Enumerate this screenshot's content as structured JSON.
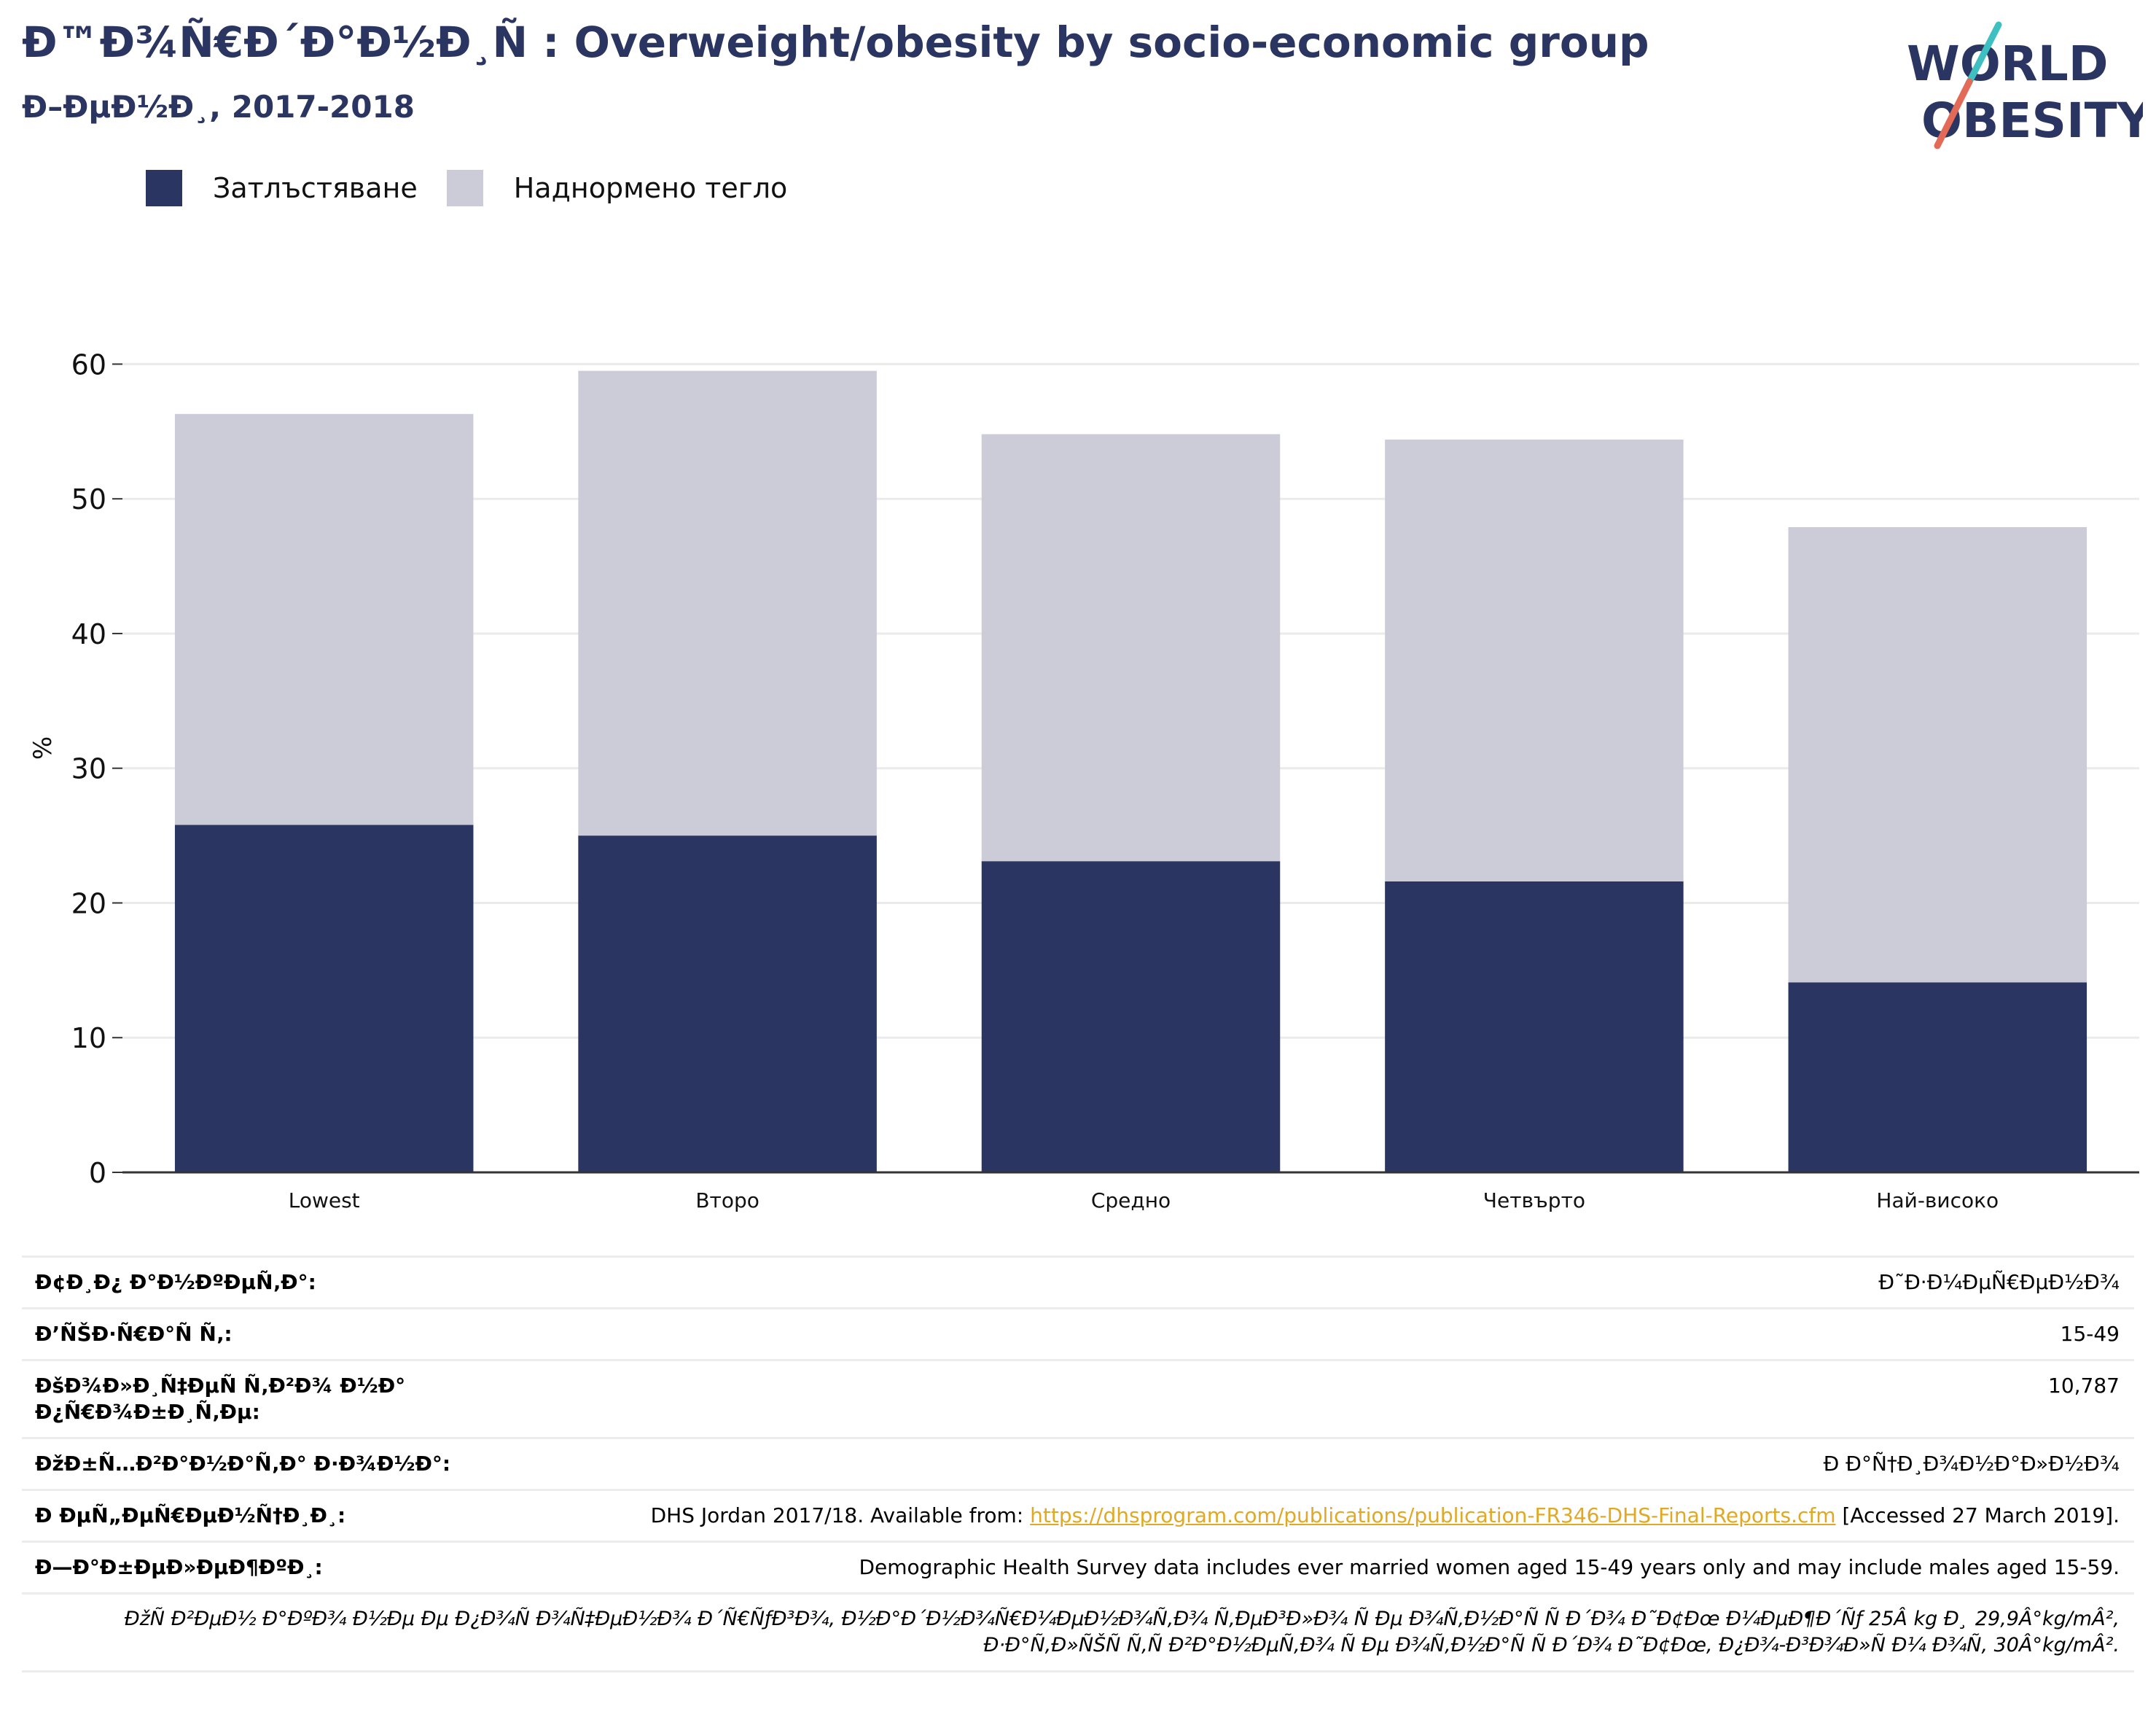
{
  "header": {
    "title": "Ð™Ð¾Ñ€Ð´Ð°Ð½Ð¸Ñ : Overweight/obesity by socio-economic group",
    "subtitle": "Ð–ÐµÐ½Ð¸, 2017-2018",
    "logo_text": "WORLD OBESITY"
  },
  "colors": {
    "obesity": "#2b3561",
    "overweight": "#cbccd8",
    "title": "#2b3561",
    "link": "#e1a823",
    "logo_teal": "#3ebfc1",
    "logo_red": "#e26a57"
  },
  "chart_data": {
    "type": "bar",
    "stacked": true,
    "categories": [
      "Lowest",
      "Второ",
      "Средно",
      "Четвърто",
      "Най-високо"
    ],
    "series": [
      {
        "name": "Затлъстяване",
        "values": [
          25.8,
          25.0,
          23.1,
          21.6,
          14.1
        ]
      },
      {
        "name": "Наднормено тегло",
        "values": [
          30.5,
          34.5,
          31.7,
          32.8,
          33.8
        ]
      }
    ],
    "totals": [
      56.3,
      59.5,
      54.8,
      54.4,
      47.9
    ],
    "ylabel": "%",
    "ylim": [
      0,
      63
    ],
    "yticks": [
      0,
      10,
      20,
      30,
      40,
      50,
      60
    ],
    "grid": true,
    "legend_position": "top-left"
  },
  "info": {
    "rows": [
      {
        "key": "Ð¢Ð¸Ð¿ Ð°Ð½ÐºÐµÑ‚Ð°:",
        "value": "Ð˜Ð·Ð¼ÐµÑ€ÐµÐ½Ð¾"
      },
      {
        "key": "Ð’ÑŠÐ·Ñ€Ð°Ñ Ñ‚:",
        "value": "15-49"
      },
      {
        "key": "ÐšÐ¾Ð»Ð¸Ñ‡ÐµÑ Ñ‚Ð²Ð¾ Ð½Ð° Ð¿Ñ€Ð¾Ð±Ð¸Ñ‚Ðµ:",
        "value": "10,787"
      },
      {
        "key": "ÐžÐ±Ñ…Ð²Ð°Ð½Ð°Ñ‚Ð° Ð·Ð¾Ð½Ð°:",
        "value": "Ð Ð°Ñ†Ð¸Ð¾Ð½Ð°Ð»Ð½Ð¾"
      }
    ],
    "references": {
      "key": "Ð ÐµÑ„ÐµÑ€ÐµÐ½Ñ†Ð¸Ð¸:",
      "prefix": "DHS Jordan 2017/18. Available from: ",
      "link": "https://dhsprogram.com/publications/publication-FR346-DHS-Final-Reports.cfm",
      "suffix": " [Accessed 27 March 2019]."
    },
    "notes": {
      "key": "Ð—Ð°Ð±ÐµÐ»ÐµÐ¶ÐºÐ¸:",
      "value": "Demographic Health Survey data includes ever married women aged 15-49 years only and may include males aged 15-59."
    },
    "definition": "ÐžÑ Ð²ÐµÐ½ Ð°ÐºÐ¾ Ð½Ðµ Ðµ Ð¿Ð¾Ñ Ð¾Ñ‡ÐµÐ½Ð¾ Ð´Ñ€ÑƒÐ³Ð¾, Ð½Ð°Ð´Ð½Ð¾Ñ€Ð¼ÐµÐ½Ð¾Ñ‚Ð¾ Ñ‚ÐµÐ³Ð»Ð¾ Ñ Ðµ Ð¾Ñ‚Ð½Ð°Ñ Ñ  Ð´Ð¾ Ð˜Ð¢Ðœ Ð¼ÐµÐ¶Ð´Ñƒ 25Â kg Ð¸ 29,9Â°kg/mÂ², Ð·Ð°Ñ‚Ð»ÑŠÑ Ñ‚Ñ Ð²Ð°Ð½ÐµÑ‚Ð¾ Ñ Ðµ Ð¾Ñ‚Ð½Ð°Ñ Ñ  Ð´Ð¾ Ð˜Ð¢Ðœ, Ð¿Ð¾-Ð³Ð¾Ð»Ñ Ð¼ Ð¾Ñ‚ 30Â°kg/mÂ²."
  }
}
